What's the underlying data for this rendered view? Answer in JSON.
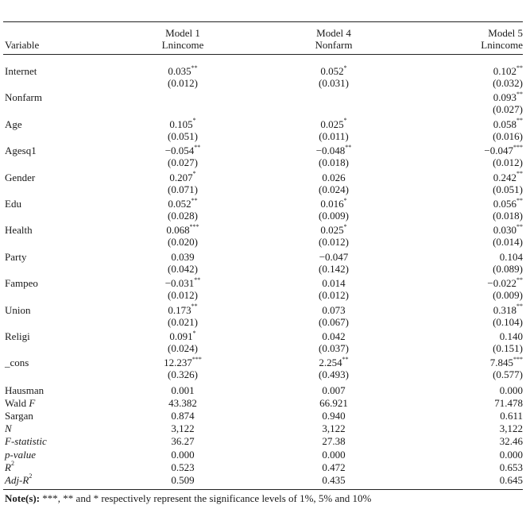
{
  "header": {
    "variable": "Variable",
    "models": [
      {
        "name": "Model 1",
        "dep": "Lnincome"
      },
      {
        "name": "Model 4",
        "dep": "Nonfarm"
      },
      {
        "name": "Model 5",
        "dep": "Lnincome"
      }
    ]
  },
  "rows": [
    {
      "var": "Internet",
      "coef": [
        "0.035",
        "0.052",
        "0.102"
      ],
      "sig": [
        "**",
        "*",
        "**"
      ],
      "se": [
        "(0.012)",
        "(0.031)",
        "(0.032)"
      ]
    },
    {
      "var": "Nonfarm",
      "coef": [
        "",
        "",
        "0.093"
      ],
      "sig": [
        "",
        "",
        "**"
      ],
      "se": [
        "",
        "",
        "(0.027)"
      ]
    },
    {
      "var": "Age",
      "coef": [
        "0.105",
        "0.025",
        "0.058"
      ],
      "sig": [
        "*",
        "*",
        "**"
      ],
      "se": [
        "(0.051)",
        "(0.011)",
        "(0.016)"
      ]
    },
    {
      "var": "Agesq1",
      "coef": [
        "−0.054",
        "−0.048",
        "−0.047"
      ],
      "sig": [
        "**",
        "**",
        "***"
      ],
      "se": [
        "(0.027)",
        "(0.018)",
        "(0.012)"
      ]
    },
    {
      "var": "Gender",
      "coef": [
        "0.207",
        "0.026",
        "0.242"
      ],
      "sig": [
        "*",
        "",
        "**"
      ],
      "se": [
        "(0.071)",
        "(0.024)",
        "(0.051)"
      ]
    },
    {
      "var": "Edu",
      "coef": [
        "0.052",
        "0.016",
        "0.056"
      ],
      "sig": [
        "**",
        "*",
        "**"
      ],
      "se": [
        "(0.028)",
        "(0.009)",
        "(0.018)"
      ]
    },
    {
      "var": "Health",
      "coef": [
        "0.068",
        "0.025",
        "0.030"
      ],
      "sig": [
        "***",
        "*",
        "**"
      ],
      "se": [
        "(0.020)",
        "(0.012)",
        "(0.014)"
      ]
    },
    {
      "var": "Party",
      "coef": [
        "0.039",
        "−0.047",
        "0.104"
      ],
      "sig": [
        "",
        "",
        ""
      ],
      "se": [
        "(0.042)",
        "(0.142)",
        "(0.089)"
      ]
    },
    {
      "var": "Fampeo",
      "coef": [
        "−0.031",
        "0.014",
        "−0.022"
      ],
      "sig": [
        "**",
        "",
        "**"
      ],
      "se": [
        "(0.012)",
        "(0.012)",
        "(0.009)"
      ]
    },
    {
      "var": "Union",
      "coef": [
        "0.173",
        "0.073",
        "0.318"
      ],
      "sig": [
        "**",
        "",
        "**"
      ],
      "se": [
        "(0.021)",
        "(0.067)",
        "(0.104)"
      ]
    },
    {
      "var": "Religi",
      "coef": [
        "0.091",
        "0.042",
        "0.140"
      ],
      "sig": [
        "*",
        "",
        ""
      ],
      "se": [
        "(0.024)",
        "(0.037)",
        "(0.151)"
      ]
    },
    {
      "var": "_cons",
      "coef": [
        "12.237",
        "2.254",
        "7.845"
      ],
      "sig": [
        "***",
        "**",
        "***"
      ],
      "se": [
        "(0.326)",
        "(0.493)",
        "(0.577)"
      ]
    }
  ],
  "stats": [
    {
      "label": "Hausman",
      "label_pre": "Hausman",
      "label_it": "",
      "label_post": "",
      "sup": "",
      "vals": [
        "0.001",
        "0.007",
        "0.000"
      ]
    },
    {
      "label": "Wald F",
      "label_pre": "Wald ",
      "label_it": "F",
      "label_post": "",
      "sup": "",
      "vals": [
        "43.382",
        "66.921",
        "71.478"
      ]
    },
    {
      "label": "Sargan",
      "label_pre": "Sargan",
      "label_it": "",
      "label_post": "",
      "sup": "",
      "vals": [
        "0.874",
        "0.940",
        "0.611"
      ]
    },
    {
      "label": "N",
      "label_pre": "",
      "label_it": "N",
      "label_post": "",
      "sup": "",
      "vals": [
        "3,122",
        "3,122",
        "3,122"
      ]
    },
    {
      "label": "F-statistic",
      "label_pre": "",
      "label_it": "F-statistic",
      "label_post": "",
      "sup": "",
      "vals": [
        "36.27",
        "27.38",
        "32.46"
      ]
    },
    {
      "label": "p-value",
      "label_pre": "",
      "label_it": "p-value",
      "label_post": "",
      "sup": "",
      "vals": [
        "0.000",
        "0.000",
        "0.000"
      ]
    },
    {
      "label": "R2",
      "label_pre": "",
      "label_it": "R",
      "label_post": "",
      "sup": "2",
      "vals": [
        "0.523",
        "0.472",
        "0.653"
      ]
    },
    {
      "label": "Adj-R2",
      "label_pre": "",
      "label_it": "Adj-R",
      "label_post": "",
      "sup": "2",
      "vals": [
        "0.509",
        "0.435",
        "0.645"
      ]
    }
  ],
  "note": {
    "prefix": "Note(s):",
    "text": " ***, ** and * respectively represent the significance levels of 1%, 5% and 10%"
  }
}
